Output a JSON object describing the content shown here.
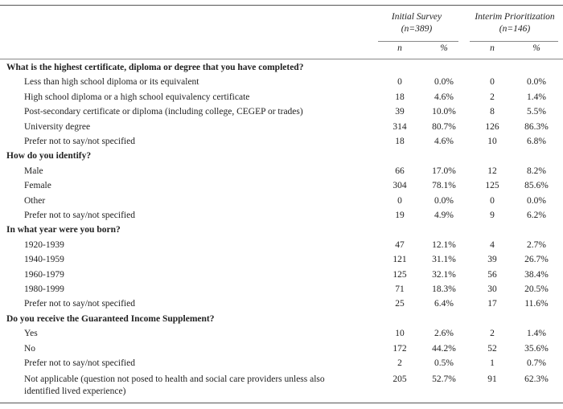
{
  "header": {
    "groups": [
      {
        "title": "Initial Survey",
        "n": "(n=389)"
      },
      {
        "title": "Interim Prioritization",
        "n": "(n=146)"
      }
    ],
    "subheaders": [
      "n",
      "%",
      "n",
      "%"
    ]
  },
  "sections": [
    {
      "question": "What is the highest certificate, diploma or degree that you have completed?",
      "rows": [
        {
          "label": "Less than high school diploma or its equivalent",
          "values": [
            "0",
            "0.0%",
            "0",
            "0.0%"
          ]
        },
        {
          "label": "High school diploma or a high school equivalency certificate",
          "values": [
            "18",
            "4.6%",
            "2",
            "1.4%"
          ]
        },
        {
          "label": "Post-secondary certificate or diploma (including college, CEGEP or trades)",
          "values": [
            "39",
            "10.0%",
            "8",
            "5.5%"
          ]
        },
        {
          "label": "University degree",
          "values": [
            "314",
            "80.7%",
            "126",
            "86.3%"
          ]
        },
        {
          "label": "Prefer not to say/not specified",
          "values": [
            "18",
            "4.6%",
            "10",
            "6.8%"
          ]
        }
      ]
    },
    {
      "question": "How do you identify?",
      "rows": [
        {
          "label": "Male",
          "values": [
            "66",
            "17.0%",
            "12",
            "8.2%"
          ]
        },
        {
          "label": "Female",
          "values": [
            "304",
            "78.1%",
            "125",
            "85.6%"
          ]
        },
        {
          "label": "Other",
          "values": [
            "0",
            "0.0%",
            "0",
            "0.0%"
          ]
        },
        {
          "label": "Prefer not to say/not specified",
          "values": [
            "19",
            "4.9%",
            "9",
            "6.2%"
          ]
        }
      ]
    },
    {
      "question": "In what year were you born?",
      "rows": [
        {
          "label": "1920-1939",
          "values": [
            "47",
            "12.1%",
            "4",
            "2.7%"
          ]
        },
        {
          "label": "1940-1959",
          "values": [
            "121",
            "31.1%",
            "39",
            "26.7%"
          ]
        },
        {
          "label": "1960-1979",
          "values": [
            "125",
            "32.1%",
            "56",
            "38.4%"
          ]
        },
        {
          "label": "1980-1999",
          "values": [
            "71",
            "18.3%",
            "30",
            "20.5%"
          ]
        },
        {
          "label": "Prefer not to say/not specified",
          "values": [
            "25",
            "6.4%",
            "17",
            "11.6%"
          ]
        }
      ]
    },
    {
      "question": "Do you receive the Guaranteed Income Supplement?",
      "rows": [
        {
          "label": "Yes",
          "values": [
            "10",
            "2.6%",
            "2",
            "1.4%"
          ]
        },
        {
          "label": "No",
          "values": [
            "172",
            "44.2%",
            "52",
            "35.6%"
          ]
        },
        {
          "label": "Prefer not to say/not specified",
          "values": [
            "2",
            "0.5%",
            "1",
            "0.7%"
          ]
        },
        {
          "label": "Not applicable (question not posed to health and social care providers unless also identified lived experience)",
          "values": [
            "205",
            "52.7%",
            "91",
            "62.3%"
          ]
        }
      ]
    }
  ]
}
